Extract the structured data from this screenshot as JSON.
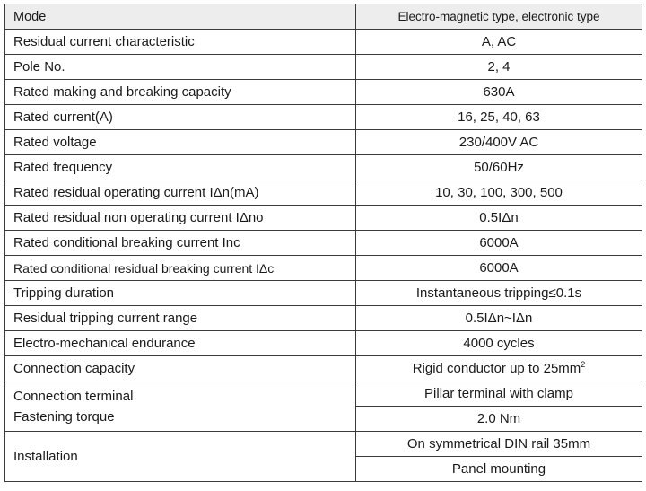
{
  "table": {
    "header": {
      "label": "Mode",
      "value": "Electro-magnetic type, electronic type"
    },
    "rows": [
      {
        "label": "Residual current characteristic",
        "value": "A, AC"
      },
      {
        "label": "Pole No.",
        "value": "2, 4"
      },
      {
        "label": "Rated making and breaking capacity",
        "value": "630A"
      },
      {
        "label": "Rated current(A)",
        "value": "16, 25, 40, 63"
      },
      {
        "label": "Rated voltage",
        "value": "230/400V AC"
      },
      {
        "label": "Rated frequency",
        "value": "50/60Hz"
      },
      {
        "label": "Rated residual operating current IΔn(mA)",
        "value": "10, 30, 100, 300, 500"
      },
      {
        "label": "Rated residual non operating current IΔno",
        "value": "0.5IΔn"
      },
      {
        "label": "Rated conditional breaking current Inc",
        "value": "6000A"
      },
      {
        "label": "Rated conditional residual breaking current IΔc",
        "value": "6000A"
      },
      {
        "label": "Tripping duration",
        "value": "Instantaneous tripping≤0.1s"
      },
      {
        "label": "Residual tripping current range",
        "value": "0.5IΔn~IΔn"
      },
      {
        "label": "Electro-mechanical endurance",
        "value": "4000 cycles"
      },
      {
        "label": "Connection capacity",
        "value": "Rigid conductor up to 25mm",
        "sup": "2"
      }
    ],
    "connection_terminal": {
      "label_line1": "Connection terminal",
      "label_line2": "Fastening torque",
      "value1": "Pillar terminal with clamp",
      "value2": "2.0 Nm"
    },
    "installation": {
      "label": "Installation",
      "value1": "On symmetrical DIN rail 35mm",
      "value2": "Panel mounting"
    }
  }
}
